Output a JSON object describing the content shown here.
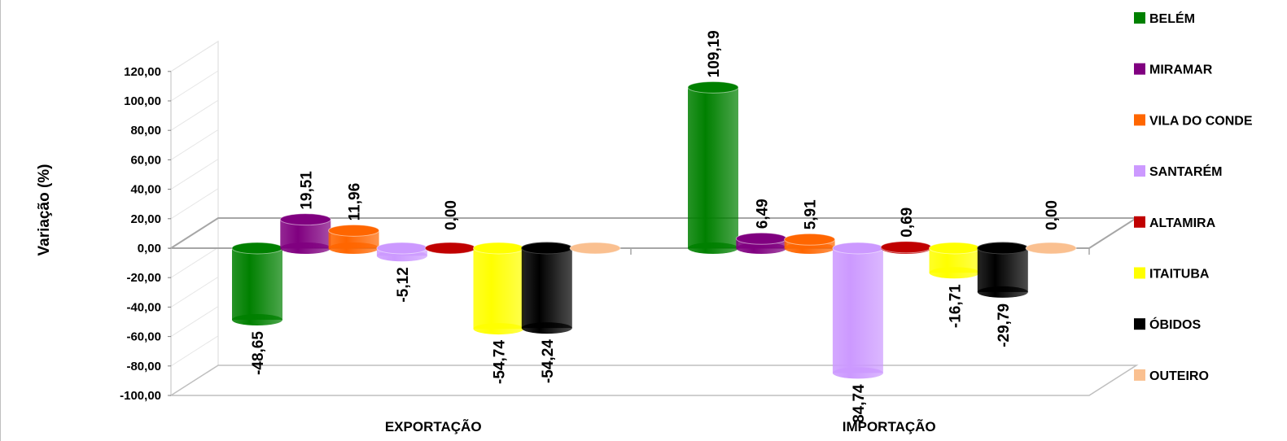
{
  "chart_data": {
    "type": "bar",
    "style": "3d-cylinder",
    "ylabel": "Variação (%)",
    "xlabel": "",
    "ylim": [
      -100,
      120
    ],
    "yticks": [
      "120,00",
      "100,00",
      "80,00",
      "60,00",
      "40,00",
      "20,00",
      "0,00",
      "-20,00",
      "-40,00",
      "-60,00",
      "-80,00",
      "-100,00"
    ],
    "ytick_values": [
      120,
      100,
      80,
      60,
      40,
      20,
      0,
      -20,
      -40,
      -60,
      -80,
      -100
    ],
    "categories": [
      "EXPORTAÇÃO",
      "IMPORTAÇÃO"
    ],
    "legend_position": "right",
    "grid": true,
    "series": [
      {
        "name": "BELÉM",
        "color": "#008000",
        "values": [
          -48.65,
          109.19
        ],
        "labels": [
          "-48,65",
          "109,19"
        ]
      },
      {
        "name": "MIRAMAR",
        "color": "#800080",
        "values": [
          19.51,
          6.49
        ],
        "labels": [
          "19,51",
          "6,49"
        ]
      },
      {
        "name": "VILA DO CONDE",
        "color": "#ff6600",
        "values": [
          11.96,
          5.91
        ],
        "labels": [
          "11,96",
          "5,91"
        ]
      },
      {
        "name": "SANTARÉM",
        "color": "#cc99ff",
        "values": [
          -5.12,
          -84.74
        ],
        "labels": [
          "-5,12",
          "-84,74"
        ]
      },
      {
        "name": "ALTAMIRA",
        "color": "#c00000",
        "values": [
          0.0,
          0.69
        ],
        "labels": [
          "0,00",
          "0,69"
        ]
      },
      {
        "name": "ITAITUBA",
        "color": "#ffff00",
        "values": [
          -54.74,
          -16.71
        ],
        "labels": [
          "-54,74",
          "-16,71"
        ]
      },
      {
        "name": "ÓBIDOS",
        "color": "#000000",
        "values": [
          -54.24,
          -29.79
        ],
        "labels": [
          "-54,24",
          "-29,79"
        ]
      },
      {
        "name": "OUTEIRO",
        "color": "#fac090",
        "values": [
          0.0,
          0.0
        ],
        "labels": [
          "",
          "0,00"
        ]
      }
    ]
  }
}
